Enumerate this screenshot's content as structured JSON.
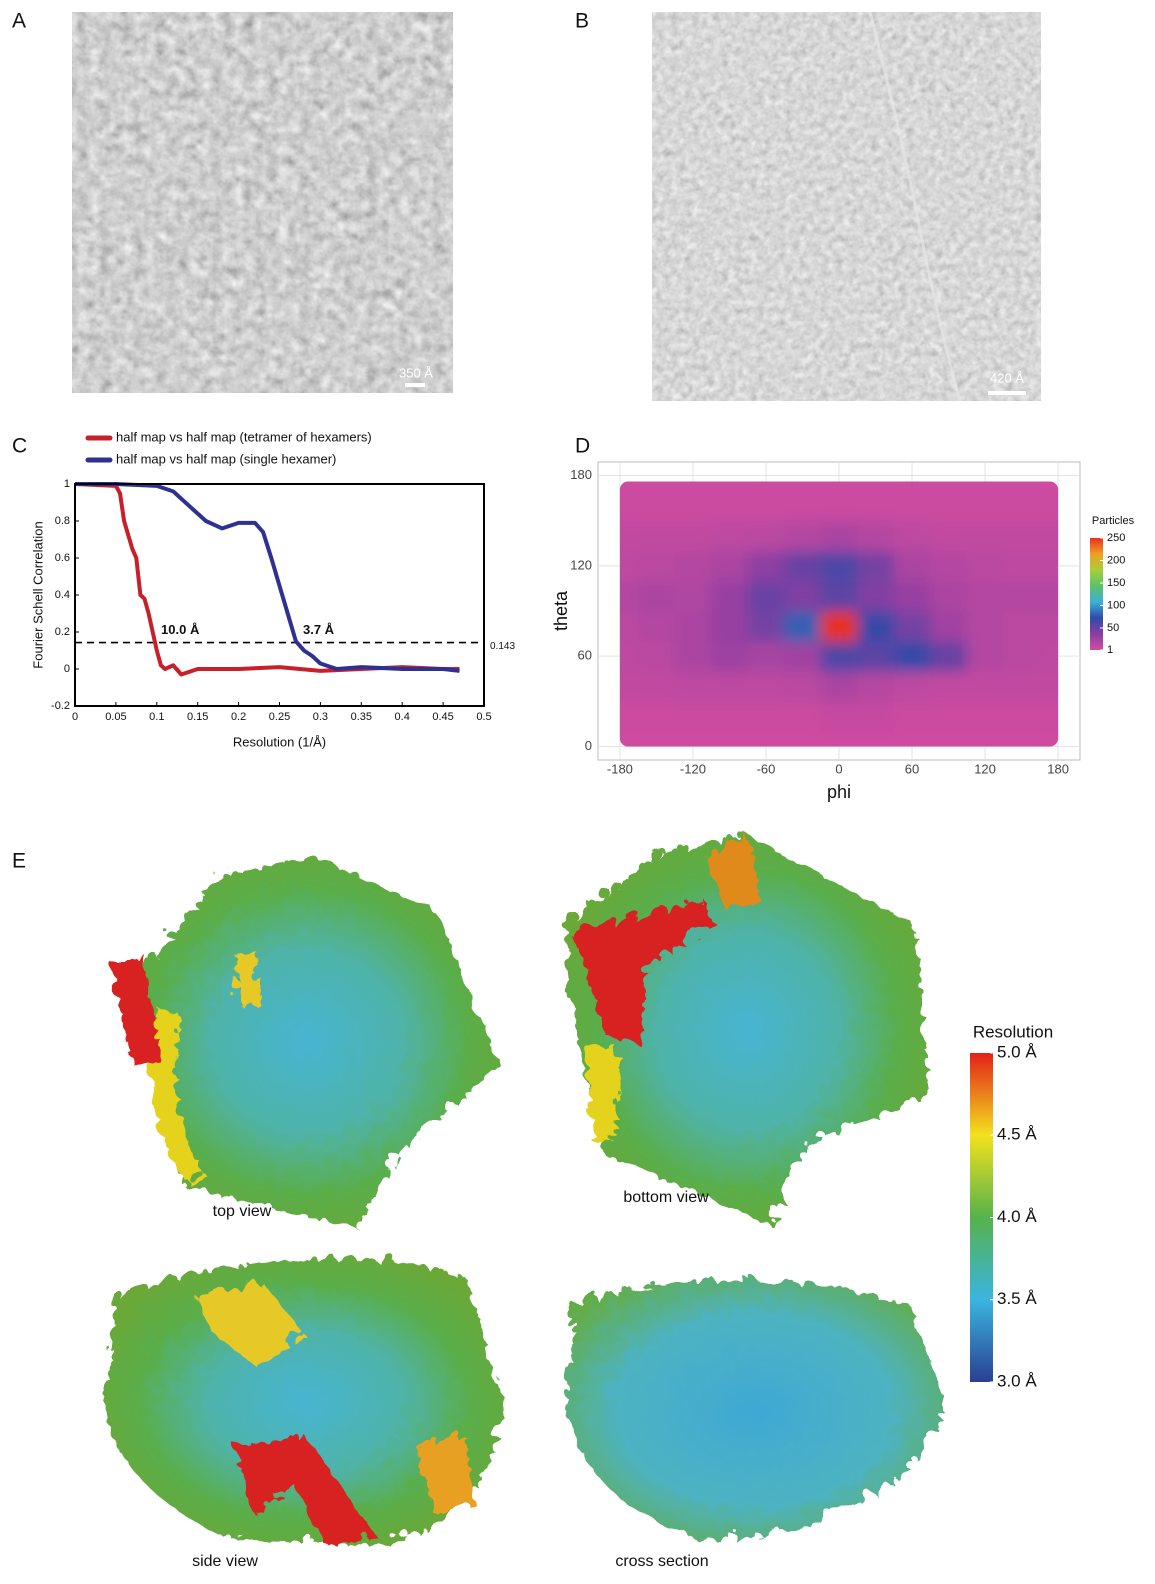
{
  "panel_labels": [
    "A",
    "B",
    "C",
    "D",
    "E"
  ],
  "micrographs": [
    {
      "scale_bar": "350 Å"
    },
    {
      "scale_bar": "420 Å"
    }
  ],
  "chart_data": [
    {
      "type": "line",
      "xlabel": "Resolution (1/Å)",
      "ylabel": "Fourier Schell Correlation",
      "xlim": [
        0,
        0.5
      ],
      "ylim": [
        -0.2,
        1
      ],
      "xticks": [
        0,
        0.05,
        0.1,
        0.15,
        0.2,
        0.25,
        0.3,
        0.35,
        0.4,
        0.45,
        0.5
      ],
      "yticks": [
        -0.2,
        0,
        0.2,
        0.4,
        0.6,
        0.8,
        1
      ],
      "threshold": 0.143,
      "annotations": [
        "10.0 Å",
        "3.7 Å"
      ],
      "series": [
        {
          "name": "half map vs half map (tetramer of hexamers)",
          "color": "#c8202a",
          "x": [
            0,
            0.05,
            0.055,
            0.06,
            0.07,
            0.075,
            0.08,
            0.085,
            0.09,
            0.095,
            0.1,
            0.105,
            0.11,
            0.12,
            0.13,
            0.15,
            0.2,
            0.25,
            0.3,
            0.35,
            0.4,
            0.45,
            0.47
          ],
          "values": [
            1,
            0.99,
            0.95,
            0.8,
            0.65,
            0.6,
            0.4,
            0.38,
            0.3,
            0.2,
            0.1,
            0.02,
            0,
            0.02,
            -0.03,
            0,
            0,
            0.01,
            -0.01,
            0,
            0.01,
            0,
            0
          ]
        },
        {
          "name": "half map vs half map (single hexamer)",
          "color": "#2e3192",
          "x": [
            0,
            0.05,
            0.1,
            0.12,
            0.14,
            0.16,
            0.18,
            0.2,
            0.22,
            0.23,
            0.24,
            0.25,
            0.26,
            0.27,
            0.28,
            0.29,
            0.3,
            0.32,
            0.35,
            0.4,
            0.45,
            0.47
          ],
          "values": [
            1,
            1,
            0.99,
            0.96,
            0.88,
            0.8,
            0.76,
            0.79,
            0.79,
            0.74,
            0.6,
            0.45,
            0.3,
            0.15,
            0.1,
            0.07,
            0.03,
            0,
            0.01,
            0,
            0,
            -0.01
          ]
        }
      ]
    },
    {
      "type": "heatmap",
      "xlabel": "phi",
      "ylabel": "theta",
      "xlim": [
        -198,
        198
      ],
      "ylim": [
        -9,
        189
      ],
      "xticks": [
        -180,
        -120,
        -60,
        0,
        60,
        120,
        180
      ],
      "yticks": [
        0,
        60,
        120,
        180
      ],
      "grid": true,
      "x": [
        -180,
        -150,
        -120,
        -90,
        -60,
        -30,
        0,
        30,
        60,
        90,
        120,
        150,
        180
      ],
      "y": [
        0,
        20,
        40,
        60,
        80,
        100,
        120,
        140,
        160,
        180
      ],
      "values": [
        [
          2,
          2,
          2,
          2,
          2,
          2,
          2,
          2,
          2,
          2,
          2,
          2,
          2
        ],
        [
          4,
          4,
          4,
          4,
          4,
          4,
          6,
          6,
          4,
          4,
          4,
          4,
          4
        ],
        [
          8,
          8,
          10,
          10,
          10,
          12,
          20,
          14,
          10,
          8,
          8,
          8,
          8
        ],
        [
          10,
          12,
          20,
          28,
          22,
          25,
          60,
          55,
          70,
          50,
          15,
          12,
          10
        ],
        [
          12,
          15,
          20,
          30,
          45,
          80,
          250,
          70,
          45,
          25,
          15,
          12,
          12
        ],
        [
          15,
          20,
          18,
          30,
          50,
          40,
          55,
          40,
          30,
          20,
          15,
          15,
          15
        ],
        [
          10,
          12,
          15,
          20,
          35,
          50,
          60,
          45,
          20,
          15,
          12,
          10,
          10
        ],
        [
          8,
          8,
          8,
          10,
          12,
          15,
          20,
          15,
          10,
          8,
          8,
          8,
          8
        ],
        [
          4,
          4,
          4,
          4,
          4,
          4,
          4,
          4,
          4,
          4,
          4,
          4,
          4
        ],
        [
          2,
          2,
          2,
          2,
          2,
          2,
          2,
          2,
          2,
          2,
          2,
          2,
          2
        ]
      ],
      "colorbar_title": "Particles",
      "zlim": [
        1,
        250
      ],
      "colorbar_ticks": [
        1,
        50,
        100,
        150,
        200,
        250
      ],
      "colormap": [
        "#d04ca0",
        "#8a3fa2",
        "#2f4aa8",
        "#3ab0d8",
        "#5cc26a",
        "#a8cf3a",
        "#f0a020",
        "#e8301e"
      ]
    }
  ],
  "maps": {
    "views": [
      "top view",
      "bottom view",
      "side view",
      "cross section"
    ],
    "colorbar": {
      "title": "Resolution",
      "lim": [
        3,
        5
      ],
      "colors": [
        "#2a3f93",
        "#3ab5df",
        "#56b24c",
        "#f2e21c",
        "#e32119"
      ],
      "ticks": [
        {
          "value": 3,
          "label": "3.0 Å"
        },
        {
          "value": 3.5,
          "label": "3.5 Å"
        },
        {
          "value": 4,
          "label": "4.0 Å"
        },
        {
          "value": 4.5,
          "label": "4.5 Å"
        },
        {
          "value": 5,
          "label": "5.0 Å"
        }
      ]
    }
  }
}
